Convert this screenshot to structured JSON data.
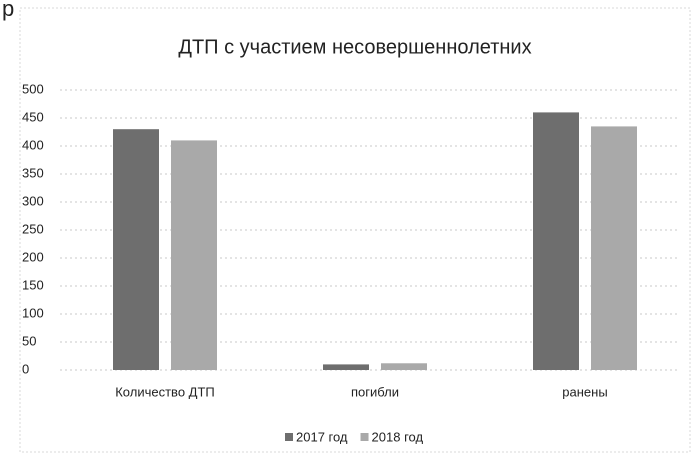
{
  "page_fragment": "р",
  "chart_data": {
    "type": "bar",
    "title": "ДТП с участием несовершеннолетних",
    "categories": [
      "Количество ДТП",
      "погибли",
      "ранены"
    ],
    "series": [
      {
        "name": "2017 год",
        "color": "#6e6e6e",
        "values": [
          430,
          10,
          460
        ]
      },
      {
        "name": "2018 год",
        "color": "#a9a9a9",
        "values": [
          410,
          12,
          435
        ]
      }
    ],
    "ylim": [
      0,
      500
    ],
    "yticks": [
      0,
      50,
      100,
      150,
      200,
      250,
      300,
      350,
      400,
      450,
      500
    ],
    "grid": true,
    "legend": "bottom"
  }
}
